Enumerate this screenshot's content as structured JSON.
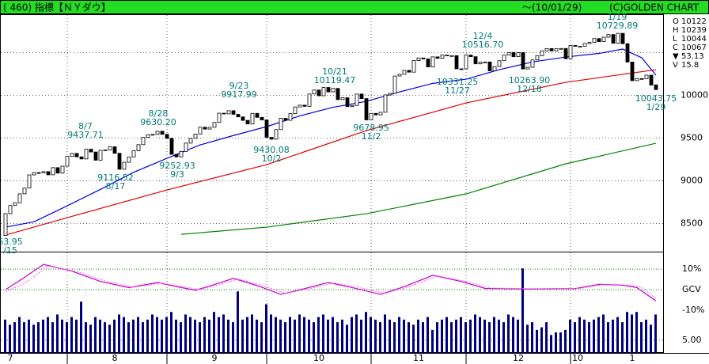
{
  "chart_data": {
    "type": "candlestick",
    "title": "( 460) 指標【ＮＹダウ】",
    "date": "〜(10/01/29)",
    "copyright": "(C)GOLDEN CHART",
    "summary": [
      {
        "key": "O",
        "value": 10122
      },
      {
        "key": "H",
        "value": 10239
      },
      {
        "key": "L",
        "value": 10044
      },
      {
        "key": "C",
        "value": 10067
      },
      {
        "key": "▼",
        "value": 53.13
      },
      {
        "key": "V",
        "value": 15.8
      }
    ],
    "xlim": [
      0,
      137
    ],
    "xticks": [
      {
        "value": 1,
        "label": "7"
      },
      {
        "value": 23,
        "label": "8"
      },
      {
        "value": 44,
        "label": "9"
      },
      {
        "value": 66,
        "label": "10"
      },
      {
        "value": 87,
        "label": "11"
      },
      {
        "value": 108,
        "label": "12"
      },
      {
        "value": 120.5,
        "label": "10"
      },
      {
        "value": 132,
        "label": "1"
      }
    ],
    "xgrid": [
      13,
      34,
      55,
      77,
      97,
      119
    ],
    "ylim": [
      8190,
      10930
    ],
    "yticks": [
      8500,
      9000,
      9500,
      10000
    ],
    "ygrid": [
      8500,
      9000,
      9500,
      10000,
      10500
    ],
    "candles": {
      "open": [
        8360,
        8616,
        8711,
        8743,
        8848,
        8915,
        9069,
        9096,
        9093,
        9108,
        9070,
        9154,
        9090,
        9171,
        9286,
        9320,
        9280,
        9256,
        9370,
        9337,
        9241,
        9357,
        9362,
        9398,
        9322,
        9135,
        9217,
        9279,
        9351,
        9423,
        9509,
        9539,
        9543,
        9580,
        9544,
        9497,
        9310,
        9280,
        9344,
        9441,
        9497,
        9547,
        9627,
        9605,
        9626,
        9683,
        9791,
        9783,
        9820,
        9778,
        9748,
        9707,
        9665,
        9789,
        9742,
        9712,
        9509,
        9487,
        9599,
        9731,
        9708,
        9786,
        9864,
        9885,
        9871,
        10016,
        10062,
        9995,
        10092,
        10040,
        10081,
        9950,
        9972,
        9868,
        9882,
        10015,
        9962,
        9713,
        9789,
        9771,
        9802,
        10005,
        10023,
        10226,
        10246,
        10292,
        10271,
        10406,
        10437,
        10426,
        10332,
        10450,
        10433,
        10471,
        10464,
        10464,
        10310,
        10309,
        10471,
        10452,
        10368,
        10388,
        10390,
        10286,
        10337,
        10405,
        10471,
        10501,
        10452,
        10500,
        10308,
        10328,
        10414,
        10464,
        10520,
        10547,
        10520,
        10545,
        10548,
        10428,
        10583,
        10573,
        10573,
        10606,
        10619,
        10664,
        10628,
        10680,
        10711,
        10609,
        10725,
        10604,
        10389,
        10172,
        10196,
        10194,
        10236,
        10122
      ],
      "close": [
        8616,
        8711,
        8743,
        8848,
        8915,
        9069,
        9096,
        9093,
        9108,
        9070,
        9154,
        9090,
        9171,
        9286,
        9320,
        9280,
        9256,
        9370,
        9337,
        9241,
        9357,
        9362,
        9398,
        9322,
        9135,
        9217,
        9279,
        9351,
        9423,
        9509,
        9539,
        9543,
        9580,
        9544,
        9497,
        9310,
        9280,
        9344,
        9441,
        9497,
        9547,
        9627,
        9605,
        9626,
        9683,
        9791,
        9783,
        9820,
        9778,
        9748,
        9707,
        9665,
        9789,
        9742,
        9712,
        9509,
        9487,
        9599,
        9731,
        9708,
        9786,
        9864,
        9885,
        9871,
        10016,
        10062,
        9995,
        10092,
        10040,
        10081,
        9950,
        9972,
        9868,
        9882,
        10015,
        9962,
        9713,
        9789,
        9771,
        9802,
        10005,
        10023,
        10226,
        10246,
        10292,
        10271,
        10406,
        10437,
        10426,
        10332,
        10450,
        10433,
        10471,
        10464,
        10464,
        10310,
        10309,
        10471,
        10452,
        10368,
        10388,
        10390,
        10286,
        10337,
        10405,
        10471,
        10501,
        10452,
        10500,
        10308,
        10328,
        10414,
        10464,
        10520,
        10547,
        10520,
        10545,
        10548,
        10428,
        10583,
        10573,
        10573,
        10606,
        10619,
        10664,
        10628,
        10680,
        10711,
        10609,
        10725,
        10604,
        10389,
        10172,
        10196,
        10194,
        10236,
        10120,
        10067
      ]
    },
    "moving_averages": [
      {
        "color": "#0000e0",
        "x": [
          0,
          6,
          13,
          20,
          27,
          34,
          41,
          48,
          55,
          62,
          69,
          76,
          83,
          90,
          97,
          104,
          111,
          118,
          125,
          130,
          134,
          137
        ],
        "values": [
          8458,
          8520,
          8708,
          8900,
          9100,
          9263,
          9420,
          9530,
          9634,
          9760,
          9860,
          9930,
          10040,
          10140,
          10189,
          10300,
          10390,
          10448,
          10490,
          10541,
          10440,
          10236
        ]
      },
      {
        "color": "#e00000",
        "x": [
          0,
          13,
          34,
          55,
          76,
          97,
          118,
          137
        ],
        "values": [
          8365,
          8569,
          8893,
          9189,
          9587,
          9911,
          10152,
          10300
        ]
      },
      {
        "color": "#008000",
        "x": [
          37,
          55,
          76,
          97,
          118,
          137
        ],
        "values": [
          8374,
          8458,
          8615,
          8847,
          9199,
          9439
        ]
      }
    ],
    "annotations": [
      {
        "date": "8/7",
        "value": 9437.71
      },
      {
        "date": "8/28",
        "value": {
          "value": 9630.2,
          "label": "9630.20"
        }
      },
      {
        "date": "9/23",
        "value": 9917.99
      },
      {
        "date": "10/21",
        "value": 10119.47
      },
      {
        "date": "12/4",
        "value": {
          "value": 10516.7,
          "label": "10516.70"
        }
      },
      {
        "date": "1/19",
        "value": 10729.89
      },
      {
        "date": "8/17",
        "value": 9116.52
      },
      {
        "date": "9/3",
        "value": 9252.93
      },
      {
        "date": "10/2",
        "value": 9430.08
      },
      {
        "date": "11/2",
        "value": 9678.95
      },
      {
        "date": "11/27",
        "value": 10331.25
      },
      {
        "date": "12/18",
        "value": {
          "value": 10263.9,
          "label": "10263.90"
        }
      },
      {
        "date": "1/29",
        "value": 10043.75
      },
      {
        "date": "/15",
        "value": 63.95
      }
    ],
    "oscillator": {
      "ylim": [
        -10,
        13.9
      ],
      "yticks": [
        {
          "value": 10,
          "label": "10%"
        },
        {
          "value": 0,
          "label": "GCV"
        },
        {
          "value": -10,
          "label": "-10%"
        }
      ],
      "lines": [
        {
          "color": "#c000c0",
          "dashed": false,
          "x": [
            0,
            4,
            8,
            14,
            20,
            26,
            32,
            36,
            40,
            44,
            48,
            53,
            58,
            63,
            68,
            73,
            79,
            84,
            90,
            96,
            101,
            110,
            120,
            125,
            130,
            133,
            137
          ],
          "values": [
            0,
            6,
            12.3,
            9,
            4,
            1,
            3.5,
            1.5,
            -0.3,
            2.5,
            5.5,
            2,
            -2.3,
            0.5,
            3.5,
            1,
            -2.3,
            1.5,
            7,
            4,
            0.6,
            0.3,
            0.5,
            2.6,
            2.2,
            1,
            -5.5
          ]
        },
        {
          "color": "#ff66ff",
          "dashed": true,
          "x": [
            0,
            4,
            9,
            15,
            21,
            27,
            33,
            37,
            41,
            45,
            49,
            54,
            59,
            64,
            69,
            74,
            80,
            85,
            91,
            97,
            102,
            111,
            121,
            126,
            131,
            134,
            137
          ],
          "values": [
            -1,
            3,
            11.5,
            8.8,
            4.2,
            1.2,
            3.2,
            1.6,
            0,
            2.4,
            5.2,
            2.2,
            -1.8,
            0.4,
            3.3,
            1.2,
            -1.8,
            1.4,
            6.7,
            4,
            0.8,
            0.4,
            0.6,
            2.5,
            2.3,
            1.2,
            -4.5
          ]
        }
      ]
    },
    "volume": {
      "color": "#000080",
      "ylim": [
        0,
        21
      ],
      "yticks": [
        {
          "value": 5,
          "label": "5.00"
        }
      ],
      "values": [
        13,
        11,
        12,
        14,
        12,
        13,
        11,
        12,
        13,
        14,
        12,
        15,
        13,
        12,
        14,
        13,
        20,
        12,
        11,
        14,
        13,
        12,
        11,
        13,
        15,
        14,
        12,
        13,
        14,
        12,
        13,
        15,
        14,
        13,
        14,
        16,
        13,
        12,
        15,
        14,
        13,
        12,
        14,
        13,
        16,
        14,
        15,
        13,
        12,
        24,
        13,
        14,
        15,
        13,
        12,
        19,
        15,
        14,
        13,
        12,
        14,
        13,
        15,
        14,
        13,
        12,
        14,
        15,
        13,
        14,
        12,
        13,
        11,
        14,
        15,
        13,
        16,
        14,
        13,
        12,
        15,
        13,
        12,
        14,
        13,
        12,
        11,
        13,
        12,
        14,
        9,
        12,
        13,
        14,
        12,
        13,
        14,
        12,
        13,
        15,
        14,
        13,
        12,
        14,
        13,
        12,
        15,
        14,
        13,
        33,
        11,
        12,
        9,
        10,
        12,
        7,
        8,
        8,
        9,
        13,
        12,
        14,
        13,
        12,
        13,
        14,
        15,
        12,
        13,
        14,
        12,
        16,
        15,
        16,
        12,
        13,
        11,
        15
      ]
    }
  }
}
